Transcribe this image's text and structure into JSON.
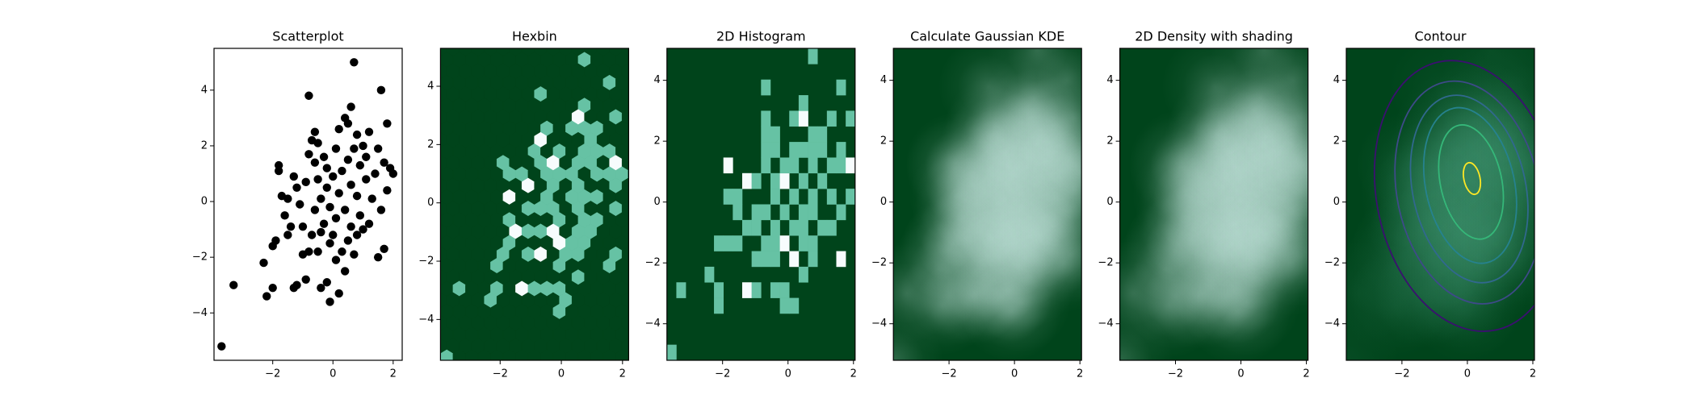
{
  "chart_data": [
    {
      "type": "scatter",
      "title": "Scatterplot",
      "color": "#000000",
      "x": [
        -3.7,
        -3.3,
        -2.3,
        -2.2,
        -2.0,
        -2.0,
        -1.9,
        -1.8,
        -1.8,
        -1.7,
        -1.6,
        -1.5,
        -1.5,
        -1.4,
        -1.3,
        -1.2,
        -1.3,
        -1.2,
        -1.1,
        -1.0,
        -1.0,
        -0.9,
        -0.9,
        -0.8,
        -0.8,
        -0.8,
        -0.7,
        -0.7,
        -0.6,
        -0.6,
        -0.6,
        -0.5,
        -0.5,
        -0.5,
        -0.4,
        -0.4,
        -0.4,
        -0.3,
        -0.3,
        -0.2,
        -0.2,
        -0.2,
        -0.1,
        -0.1,
        -0.1,
        0.0,
        0.0,
        0.1,
        0.1,
        0.1,
        0.2,
        0.2,
        0.2,
        0.3,
        0.3,
        0.4,
        0.4,
        0.4,
        0.5,
        0.5,
        0.5,
        0.6,
        0.6,
        0.6,
        0.7,
        0.7,
        0.7,
        0.8,
        0.8,
        0.8,
        0.9,
        0.9,
        1.0,
        1.0,
        1.1,
        1.1,
        1.2,
        1.2,
        1.3,
        1.4,
        1.5,
        1.6,
        1.6,
        1.7,
        1.7,
        1.8,
        1.8,
        1.9,
        2.0,
        1.5
      ],
      "y": [
        -5.2,
        -3.0,
        -2.2,
        -3.4,
        -3.1,
        -1.6,
        -1.4,
        1.1,
        1.3,
        0.2,
        -0.5,
        0.1,
        -1.2,
        -0.9,
        -3.1,
        -3.0,
        0.9,
        0.5,
        -0.1,
        -1.9,
        -0.9,
        0.7,
        -2.8,
        3.8,
        -1.8,
        1.7,
        2.2,
        -1.2,
        2.5,
        1.4,
        -0.3,
        0.8,
        -1.8,
        2.1,
        -3.1,
        0.1,
        -1.1,
        1.6,
        -0.8,
        -2.9,
        0.5,
        1.2,
        -1.5,
        -0.2,
        -3.6,
        0.9,
        -1.2,
        1.9,
        -0.6,
        -2.1,
        2.6,
        0.3,
        -3.3,
        -1.8,
        1.1,
        3.0,
        -0.3,
        -2.5,
        1.5,
        2.8,
        -1.4,
        0.6,
        3.4,
        -0.9,
        5.0,
        1.9,
        -1.9,
        0.2,
        2.4,
        -1.2,
        1.3,
        -0.5,
        2.0,
        -1.0,
        0.8,
        1.6,
        -0.8,
        2.5,
        0.1,
        1.0,
        1.9,
        4.0,
        -0.3,
        1.4,
        -1.7,
        2.8,
        0.4,
        1.2,
        1.0,
        -2.0
      ],
      "xlim": [
        -3.95,
        2.3
      ],
      "ylim": [
        -5.7,
        5.5
      ],
      "xticks": [
        {
          "value": -2,
          "label": "−2"
        },
        0,
        2
      ],
      "yticks": [
        {
          "value": -4,
          "label": "−4"
        },
        {
          "value": -2,
          "label": "−2"
        },
        0,
        2,
        4
      ]
    },
    {
      "type": "hexbin",
      "title": "Hexbin",
      "colormap": [
        "#00441b",
        "#238b45",
        "#66c2a4",
        "#ccece6",
        "#f7fcfd"
      ],
      "xlim": [
        -3.95,
        2.2
      ],
      "ylim": [
        -5.4,
        5.3
      ],
      "xticks": [
        {
          "value": -2,
          "label": "−2"
        },
        0,
        2
      ],
      "yticks": [
        {
          "value": -4,
          "label": "−4"
        },
        {
          "value": -2,
          "label": "−2"
        },
        0,
        2,
        4
      ]
    },
    {
      "type": "hist2d",
      "title": "2D Histogram",
      "colormap": [
        "#00441b",
        "#238b45",
        "#66c2a4",
        "#ccece6",
        "#f7fcfd"
      ],
      "xlim": [
        -3.7,
        2.05
      ],
      "ylim": [
        -5.2,
        5.05
      ],
      "xticks": [
        {
          "value": -2,
          "label": "−2"
        },
        0,
        2
      ],
      "yticks": [
        {
          "value": -4,
          "label": "−4"
        },
        {
          "value": -2,
          "label": "−2"
        },
        0,
        2,
        4
      ]
    },
    {
      "type": "kde",
      "title": "Calculate Gaussian KDE",
      "colormap": [
        "#00441b",
        "#238b45",
        "#66c2a4",
        "#ccece6",
        "#f7fcfd"
      ],
      "xlim": [
        -3.7,
        2.05
      ],
      "ylim": [
        -5.2,
        5.05
      ],
      "xticks": [
        {
          "value": -2,
          "label": "−2"
        },
        0,
        2
      ],
      "yticks": [
        {
          "value": -4,
          "label": "−4"
        },
        {
          "value": -2,
          "label": "−2"
        },
        0,
        2,
        4
      ]
    },
    {
      "type": "density",
      "title": "2D Density with shading",
      "colormap": [
        "#00441b",
        "#238b45",
        "#66c2a4",
        "#ccece6",
        "#f7fcfd"
      ],
      "xlim": [
        -3.7,
        2.05
      ],
      "ylim": [
        -5.2,
        5.05
      ],
      "xticks": [
        {
          "value": -2,
          "label": "−2"
        },
        0,
        2
      ],
      "yticks": [
        {
          "value": -4,
          "label": "−4"
        },
        {
          "value": -2,
          "label": "−2"
        },
        0,
        2,
        4
      ]
    },
    {
      "type": "contour",
      "title": "Contour",
      "colormap": [
        "#00441b",
        "#238b45",
        "#66c2a4",
        "#ccece6",
        "#f7fcfd"
      ],
      "xlim": [
        -3.7,
        2.05
      ],
      "ylim": [
        -5.2,
        5.05
      ],
      "xticks": [
        {
          "value": -2,
          "label": "−2"
        },
        0,
        2
      ],
      "yticks": [
        {
          "value": -4,
          "label": "−4"
        },
        {
          "value": -2,
          "label": "−2"
        },
        0,
        2,
        4
      ]
    }
  ]
}
